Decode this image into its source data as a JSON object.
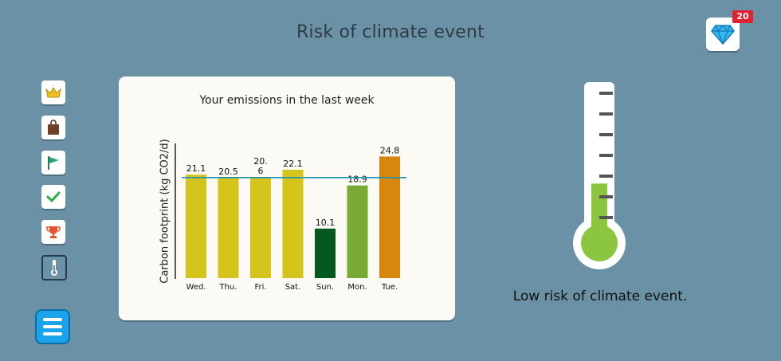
{
  "header": {
    "title": "Risk of climate event"
  },
  "gems": {
    "count": "20",
    "icon": "diamond-icon"
  },
  "sidebar": {
    "items": [
      {
        "icon": "crown-icon"
      },
      {
        "icon": "shopping-bag-icon"
      },
      {
        "icon": "flag-icon"
      },
      {
        "icon": "checkmark-icon"
      },
      {
        "icon": "trophy-icon"
      },
      {
        "icon": "thermometer-icon",
        "active": true
      }
    ]
  },
  "menu": {
    "icon": "hamburger-menu-icon"
  },
  "chart_data": {
    "type": "bar",
    "title": "Your emissions in the last week",
    "xlabel": "",
    "ylabel": "Carbon footprint (kg CO2/d)",
    "categories": [
      "Wed.",
      "Thu.",
      "Fri.",
      "Sat.",
      "Sun.",
      "Mon.",
      "Tue."
    ],
    "values": [
      21.1,
      20.5,
      20.6,
      22.1,
      10.1,
      18.9,
      24.8
    ],
    "value_labels": [
      "21.1",
      "20.5",
      "20.\n6",
      "22.1",
      "10.1",
      "18.9",
      "24.8"
    ],
    "colors": [
      "#d4c41c",
      "#d4c41c",
      "#d4c41c",
      "#d4c41c",
      "#045a1c",
      "#78aa34",
      "#d9860e"
    ],
    "reference_line": {
      "value": 20.5,
      "color": "#1f8fb3"
    },
    "ylim": [
      0,
      26
    ],
    "grid": false
  },
  "thermometer": {
    "level": 0.33,
    "fill_color": "#8cc640"
  },
  "risk": {
    "message": "Low risk of climate event."
  }
}
